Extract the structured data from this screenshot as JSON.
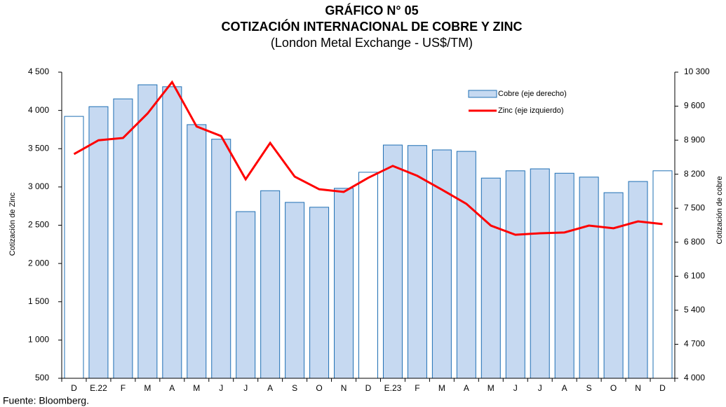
{
  "chart_data": {
    "type": "bar_line",
    "title": [
      "GRÁFICO N° 05",
      "COTIZACIÓN INTERNACIONAL DE COBRE Y ZINC"
    ],
    "subtitle": "(London Metal Exchange - US$/TM)",
    "y_label": "Cotización de Zinc",
    "y2_label": "Cotización de cobre",
    "source": "Fuente: Bloomberg.",
    "categories": [
      "D",
      "E.22",
      "F",
      "M",
      "A",
      "M",
      "J",
      "J",
      "A",
      "S",
      "O",
      "N",
      "D",
      "E.23",
      "F",
      "M",
      "A",
      "M",
      "J",
      "J",
      "A",
      "S",
      "O",
      "N",
      "D"
    ],
    "series": [
      {
        "name": "Cobre (eje derecho)",
        "type": "bar",
        "axis": "y2",
        "color": "#c6d9f1",
        "edge_color": "#1f6fb4",
        "bar_colors": [
          "#ffffff",
          "#c6d9f1",
          "#c6d9f1",
          "#c6d9f1",
          "#c6d9f1",
          "#c6d9f1",
          "#c6d9f1",
          "#c6d9f1",
          "#c6d9f1",
          "#c6d9f1",
          "#c6d9f1",
          "#c6d9f1",
          "#ffffff",
          "#c6d9f1",
          "#c6d9f1",
          "#c6d9f1",
          "#c6d9f1",
          "#c6d9f1",
          "#c6d9f1",
          "#c6d9f1",
          "#c6d9f1",
          "#c6d9f1",
          "#c6d9f1",
          "#c6d9f1",
          "#ffffff"
        ],
        "values": [
          9390,
          9590,
          9750,
          10040,
          10000,
          9220,
          8920,
          7430,
          7860,
          7620,
          7520,
          7910,
          8240,
          8800,
          8790,
          8700,
          8670,
          8120,
          8270,
          8310,
          8220,
          8140,
          7820,
          8050,
          8270
        ]
      },
      {
        "name": "Zinc (eje izquierdo)",
        "type": "line",
        "axis": "y",
        "color": "#ff0000",
        "values": [
          3430,
          3610,
          3640,
          3960,
          4370,
          3790,
          3665,
          3100,
          3575,
          3135,
          2970,
          2935,
          3120,
          3275,
          3145,
          2965,
          2780,
          2495,
          2375,
          2395,
          2405,
          2495,
          2460,
          2550,
          2515
        ]
      }
    ],
    "ylim": [
      500,
      4500
    ],
    "yticks": [
      500,
      {
        "value": 1000,
        "label": "1 000"
      },
      {
        "value": 1500,
        "label": "1 500"
      },
      {
        "value": 2000,
        "label": "2 000"
      },
      {
        "value": 2500,
        "label": "2 500"
      },
      {
        "value": 3000,
        "label": "3 000"
      },
      {
        "value": 3500,
        "label": "3 500"
      },
      {
        "value": 4000,
        "label": "4 000"
      },
      {
        "value": 4500,
        "label": "4 500"
      }
    ],
    "y2lim": [
      4000,
      10300
    ],
    "y2ticks": [
      {
        "value": 4000,
        "label": "4 000"
      },
      {
        "value": 4700,
        "label": "4 700"
      },
      {
        "value": 5400,
        "label": "5 400"
      },
      {
        "value": 6100,
        "label": "6 100"
      },
      {
        "value": 6800,
        "label": "6 800"
      },
      {
        "value": 7500,
        "label": "7 500"
      },
      {
        "value": 8200,
        "label": "8 200"
      },
      {
        "value": 8900,
        "label": "8 900"
      },
      {
        "value": 9600,
        "label": "9 600"
      },
      {
        "value": 10300,
        "label": "10 300"
      }
    ],
    "grid": false,
    "legend": "upper right"
  }
}
